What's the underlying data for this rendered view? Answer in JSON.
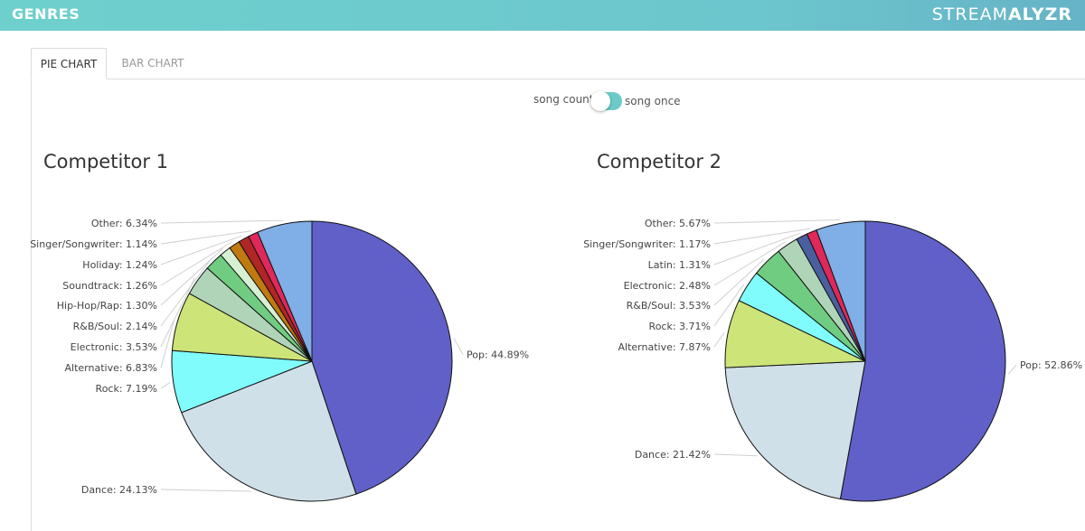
{
  "header": {
    "title": "GENRES",
    "brand_regular": "STREAM",
    "brand_bold": "ALYZR"
  },
  "tabs": [
    {
      "label": "PIE CHART",
      "active": true
    },
    {
      "label": "BAR CHART",
      "active": false
    }
  ],
  "toggle": {
    "left_label": "song count",
    "right_label": "song once",
    "state": "song once"
  },
  "colors": {
    "header": "#6ed0cd",
    "toggle": "#6ccbc9"
  },
  "chart_data": [
    {
      "type": "pie",
      "title": "Competitor 1",
      "slices": [
        {
          "label": "Pop",
          "value": 44.89,
          "color": "#6060c8",
          "label_text": "Pop: 44.89%"
        },
        {
          "label": "Dance",
          "value": 24.13,
          "color": "#d0e0e9",
          "label_text": "Dance: 24.13%"
        },
        {
          "label": "Rock",
          "value": 7.19,
          "color": "#80fcfc",
          "label_text": "Rock: 7.19%"
        },
        {
          "label": "Alternative",
          "value": 6.83,
          "color": "#cde478",
          "label_text": "Alternative: 6.83%"
        },
        {
          "label": "Electronic",
          "value": 3.53,
          "color": "#b0d4b8",
          "label_text": "Electronic: 3.53%"
        },
        {
          "label": "R&B/Soul",
          "value": 2.14,
          "color": "#70cc80",
          "label_text": "R&B/Soul: 2.14%"
        },
        {
          "label": "Hip-Hop/Rap",
          "value": 1.3,
          "color": "#d7f0d3",
          "label_text": "Hip-Hop/Rap: 1.30%"
        },
        {
          "label": "Soundtrack",
          "value": 1.26,
          "color": "#c07a10",
          "label_text": "Soundtrack: 1.26%"
        },
        {
          "label": "Holiday",
          "value": 1.24,
          "color": "#b02626",
          "label_text": "Holiday: 1.24%"
        },
        {
          "label": "Singer/Songwriter",
          "value": 1.14,
          "color": "#e0285a",
          "label_text": "Singer/Songwriter: 1.14%"
        },
        {
          "label": "Other",
          "value": 6.34,
          "color": "#80aee6",
          "label_text": "Other: 6.34%"
        }
      ]
    },
    {
      "type": "pie",
      "title": "Competitor 2",
      "slices": [
        {
          "label": "Pop",
          "value": 52.86,
          "color": "#6060c8",
          "label_text": "Pop: 52.86%"
        },
        {
          "label": "Dance",
          "value": 21.42,
          "color": "#d0e0e9",
          "label_text": "Dance: 21.42%"
        },
        {
          "label": "Alternative",
          "value": 7.87,
          "color": "#cde478",
          "label_text": "Alternative: 7.87%"
        },
        {
          "label": "Rock",
          "value": 3.71,
          "color": "#80fcfc",
          "label_text": "Rock: 3.71%"
        },
        {
          "label": "R&B/Soul",
          "value": 3.53,
          "color": "#70cc80",
          "label_text": "R&B/Soul: 3.53%"
        },
        {
          "label": "Electronic",
          "value": 2.48,
          "color": "#b0d4b8",
          "label_text": "Electronic: 2.48%"
        },
        {
          "label": "Latin",
          "value": 1.31,
          "color": "#4a5fa0",
          "label_text": "Latin: 1.31%"
        },
        {
          "label": "Singer/Songwriter",
          "value": 1.17,
          "color": "#e0285a",
          "label_text": "Singer/Songwriter: 1.17%"
        },
        {
          "label": "Other",
          "value": 5.67,
          "color": "#80aee6",
          "label_text": "Other: 5.67%"
        }
      ]
    }
  ]
}
